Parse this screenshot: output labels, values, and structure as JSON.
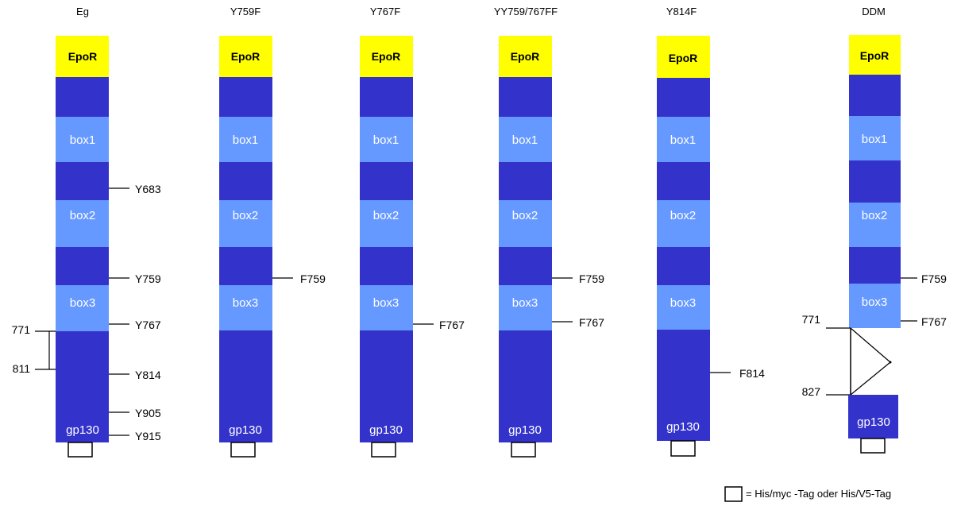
{
  "colors": {
    "epor": "#ffff00",
    "dark": "#3333cc",
    "light": "#6699ff",
    "line": "#000000",
    "text_on_dark": "#ffffff"
  },
  "segment_labels": {
    "epor": "EpoR",
    "box1": "box1",
    "box2": "box2",
    "box3": "box3",
    "gp130": "gp130"
  },
  "constructs": [
    {
      "name": "Eg",
      "right_labels": [
        "Y683",
        "Y759",
        "Y767",
        "Y814",
        "Y905",
        "Y915"
      ],
      "left_labels": [
        "771",
        "811"
      ]
    },
    {
      "name": "Y759F",
      "right_labels": [
        "F759"
      ],
      "left_labels": []
    },
    {
      "name": "Y767F",
      "right_labels": [
        "F767"
      ],
      "left_labels": []
    },
    {
      "name": "YY759/767FF",
      "right_labels": [
        "F759",
        "F767"
      ],
      "left_labels": []
    },
    {
      "name": "Y814F",
      "right_labels": [
        "F814"
      ],
      "left_labels": []
    },
    {
      "name": "DDM",
      "right_labels": [
        "F759",
        "F767"
      ],
      "left_labels": [
        "771",
        "827"
      ]
    }
  ],
  "legend": {
    "text": "= His/myc -Tag oder His/V5-Tag"
  }
}
